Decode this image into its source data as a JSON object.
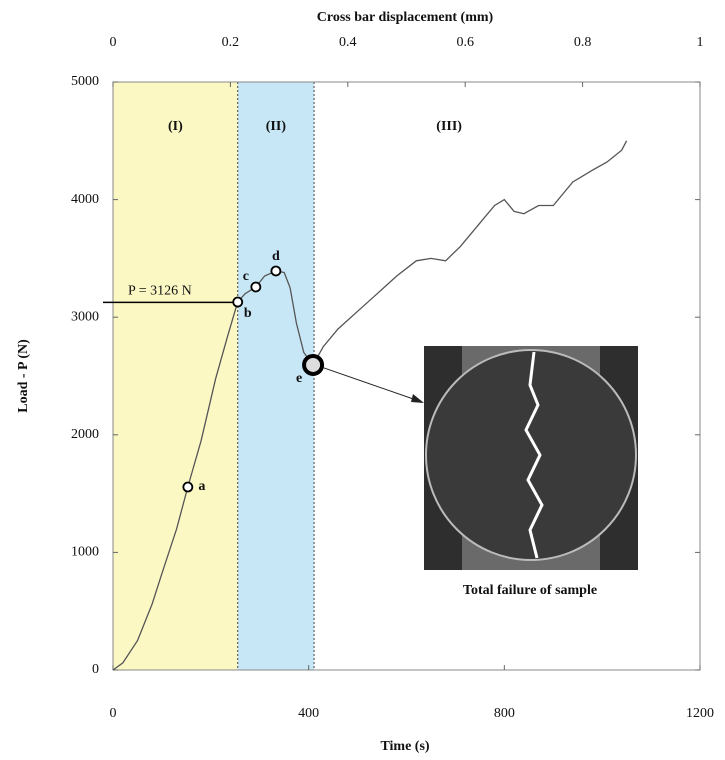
{
  "chart_data": {
    "type": "line",
    "xlabel": "Time (s)",
    "ylabel": "Load - P (N)",
    "x2label": "Cross bar displacement (mm)",
    "xlim": [
      0,
      1200
    ],
    "xticks": [
      0,
      400,
      800,
      1200
    ],
    "ylim": [
      0,
      5000
    ],
    "yticks": [
      0,
      1000,
      2000,
      3000,
      4000,
      5000
    ],
    "x2lim": [
      0,
      1
    ],
    "x2ticks": [
      0,
      0.2,
      0.4,
      0.6,
      0.8,
      1
    ],
    "x": [
      0,
      20,
      50,
      80,
      100,
      130,
      153,
      180,
      210,
      235,
      255,
      270,
      292,
      310,
      333,
      350,
      362,
      375,
      390,
      409,
      430,
      460,
      500,
      540,
      580,
      620,
      650,
      680,
      710,
      750,
      780,
      800,
      820,
      840,
      870,
      900,
      940,
      980,
      1010,
      1040,
      1050
    ],
    "series": [
      {
        "color": "#555555",
        "values": [
          0,
          60,
          250,
          560,
          820,
          1200,
          1556,
          1950,
          2480,
          2850,
          3129,
          3200,
          3257,
          3350,
          3393,
          3380,
          3250,
          2950,
          2700,
          2594,
          2750,
          2900,
          3050,
          3200,
          3350,
          3480,
          3500,
          3480,
          3600,
          3800,
          3950,
          4000,
          3900,
          3880,
          3950,
          3950,
          4150,
          4250,
          4320,
          4420,
          4500
        ]
      }
    ],
    "regions": [
      {
        "label": "(I)",
        "start": 0,
        "end": 255,
        "color": "#fbf8c4"
      },
      {
        "label": "(II)",
        "start": 255,
        "end": 411,
        "color": "#c8e7f6"
      },
      {
        "label": "(III)",
        "start": 411,
        "end": 1200,
        "color": "#ffffff"
      }
    ],
    "points": [
      {
        "label": "a",
        "x": 153,
        "y": 1556
      },
      {
        "label": "b",
        "x": 255,
        "y": 3129
      },
      {
        "label": "c",
        "x": 292,
        "y": 3257
      },
      {
        "label": "d",
        "x": 333,
        "y": 3393
      },
      {
        "label": "e",
        "x": 409,
        "y": 2594
      }
    ],
    "annotation": {
      "text": "P = 3126 N",
      "y": 3126
    },
    "inset": {
      "caption": "Total failure of sample"
    }
  }
}
